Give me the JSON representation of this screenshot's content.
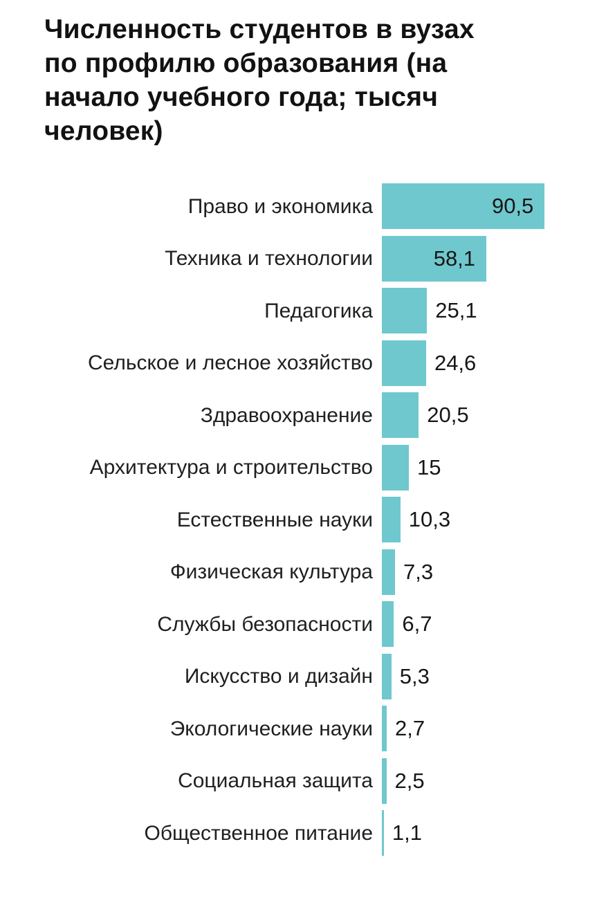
{
  "header": {
    "title": "Численность студентов в вузах\nпо профилю образования (на\nначало учебного года; тысяч\nчеловек)"
  },
  "chart_data": {
    "type": "bar",
    "orientation": "horizontal",
    "title": "Численность студентов в вузах по профилю образования (на начало учебного года; тысяч человек)",
    "categories": [
      "Право и экономика",
      "Техника и технологии",
      "Педагогика",
      "Сельское и лесное хозяйство",
      "Здравоохранение",
      "Архитектура и строительство",
      "Естественные науки",
      "Физическая культура",
      "Службы безопасности",
      "Искусство и дизайн",
      "Экологические науки",
      "Социальная защита",
      "Общественное питание"
    ],
    "values": [
      90.5,
      58.1,
      25.1,
      24.6,
      20.5,
      15,
      10.3,
      7.3,
      6.7,
      5.3,
      2.7,
      2.5,
      1.1
    ],
    "value_labels": [
      "90,5",
      "58,1",
      "25,1",
      "24,6",
      "20,5",
      "15",
      "10,3",
      "7,3",
      "6,7",
      "5,3",
      "2,7",
      "2,5",
      "1,1"
    ],
    "xlabel": "",
    "ylabel": "",
    "xlim": [
      0,
      95
    ],
    "grid": false,
    "legend": false,
    "bar_color": "#6FC8CD",
    "text_color": "#1a1a1a",
    "background_color": "#ffffff"
  }
}
